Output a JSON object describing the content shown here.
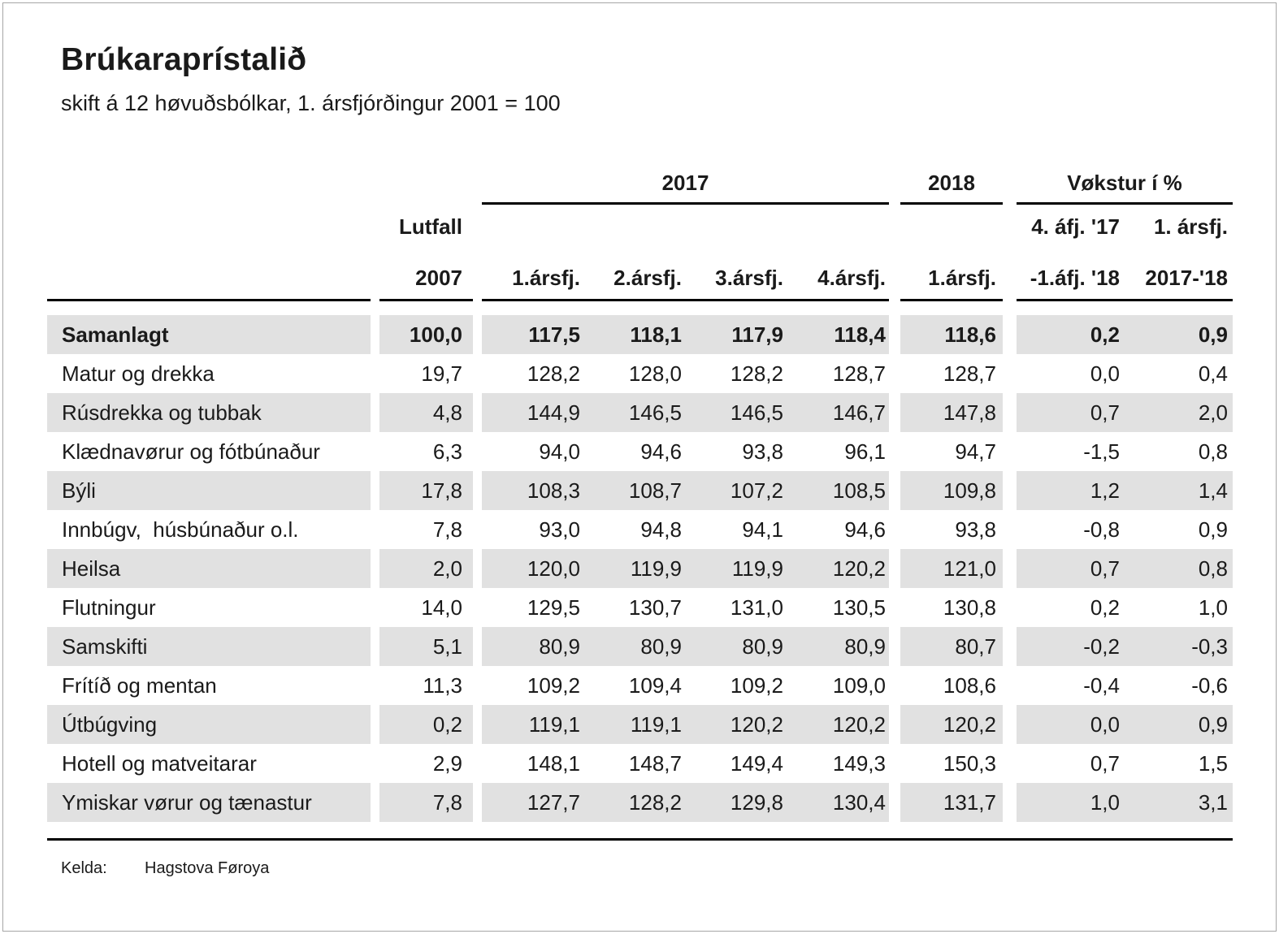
{
  "page": {
    "title": "Brúkaraprístalið",
    "subtitle": "skift á 12 høvuðsbólkar, 1. ársfjórðingur 2001 = 100",
    "source_label": "Kelda:",
    "source_value": "Hagstova Føroya"
  },
  "colors": {
    "row_shade": "#e1e1e1",
    "rule": "#000000",
    "text": "#1a1a1a",
    "frame_border": "#a6a6a6"
  },
  "table": {
    "group_headers": {
      "y2017": "2017",
      "y2018": "2018",
      "growth": "Vøkstur í %"
    },
    "col_headers": {
      "lutfall_line1": "Lutfall",
      "lutfall_line2": "2007",
      "q1_2017": "1.ársfj.",
      "q2_2017": "2.ársfj.",
      "q3_2017": "3.ársfj.",
      "q4_2017": "4.ársfj.",
      "q1_2018": "1.ársfj.",
      "growth1_line1": "4. áfj. '17",
      "growth1_line2": "-1.áfj. '18",
      "growth2_line1": "1. ársfj.",
      "growth2_line2": "2017-'18"
    },
    "rows": [
      {
        "label": "Samanlagt",
        "bold": true,
        "values": [
          "100,0",
          "117,5",
          "118,1",
          "117,9",
          "118,4",
          "118,6",
          "0,2",
          "0,9"
        ]
      },
      {
        "label": "Matur og drekka",
        "bold": false,
        "values": [
          "19,7",
          "128,2",
          "128,0",
          "128,2",
          "128,7",
          "128,7",
          "0,0",
          "0,4"
        ]
      },
      {
        "label": "Rúsdrekka og tubbak",
        "bold": false,
        "values": [
          "4,8",
          "144,9",
          "146,5",
          "146,5",
          "146,7",
          "147,8",
          "0,7",
          "2,0"
        ]
      },
      {
        "label": "Klædnavørur og fótbúnaður",
        "bold": false,
        "values": [
          "6,3",
          "94,0",
          "94,6",
          "93,8",
          "96,1",
          "94,7",
          "-1,5",
          "0,8"
        ]
      },
      {
        "label": "Býli",
        "bold": false,
        "values": [
          "17,8",
          "108,3",
          "108,7",
          "107,2",
          "108,5",
          "109,8",
          "1,2",
          "1,4"
        ]
      },
      {
        "label": "Innbúgv,  húsbúnaður o.l.",
        "bold": false,
        "values": [
          "7,8",
          "93,0",
          "94,8",
          "94,1",
          "94,6",
          "93,8",
          "-0,8",
          "0,9"
        ]
      },
      {
        "label": "Heilsa",
        "bold": false,
        "values": [
          "2,0",
          "120,0",
          "119,9",
          "119,9",
          "120,2",
          "121,0",
          "0,7",
          "0,8"
        ]
      },
      {
        "label": "Flutningur",
        "bold": false,
        "values": [
          "14,0",
          "129,5",
          "130,7",
          "131,0",
          "130,5",
          "130,8",
          "0,2",
          "1,0"
        ]
      },
      {
        "label": "Samskifti",
        "bold": false,
        "values": [
          "5,1",
          "80,9",
          "80,9",
          "80,9",
          "80,9",
          "80,7",
          "-0,2",
          "-0,3"
        ]
      },
      {
        "label": "Frítíð og mentan",
        "bold": false,
        "values": [
          "11,3",
          "109,2",
          "109,4",
          "109,2",
          "109,0",
          "108,6",
          "-0,4",
          "-0,6"
        ]
      },
      {
        "label": "Útbúgving",
        "bold": false,
        "values": [
          "0,2",
          "119,1",
          "119,1",
          "120,2",
          "120,2",
          "120,2",
          "0,0",
          "0,9"
        ]
      },
      {
        "label": "Hotell og matveitarar",
        "bold": false,
        "values": [
          "2,9",
          "148,1",
          "148,7",
          "149,4",
          "149,3",
          "150,3",
          "0,7",
          "1,5"
        ]
      },
      {
        "label": "Ymiskar vørur og tænastur",
        "bold": false,
        "values": [
          "7,8",
          "127,7",
          "128,2",
          "129,8",
          "130,4",
          "131,7",
          "1,0",
          "3,1"
        ]
      }
    ]
  },
  "chart_data": {
    "type": "table",
    "title": "Brúkaraprístalið",
    "subtitle": "skift á 12 høvuðsbólkar, 1. ársfjórðingur 2001 = 100",
    "source": "Kelda: Hagstova Føroya",
    "column_groups": [
      "Lutfall 2007",
      "2017",
      "2017",
      "2017",
      "2017",
      "2018",
      "Vøkstur í %",
      "Vøkstur í %"
    ],
    "columns": [
      "Lutfall 2007",
      "2017 1.ársfj.",
      "2017 2.ársfj.",
      "2017 3.ársfj.",
      "2017 4.ársfj.",
      "2018 1.ársfj.",
      "4. áfj. '17 -1.áfj. '18",
      "1. ársfj. 2017-'18"
    ],
    "rows": [
      {
        "category": "Samanlagt",
        "values": [
          100.0,
          117.5,
          118.1,
          117.9,
          118.4,
          118.6,
          0.2,
          0.9
        ]
      },
      {
        "category": "Matur og drekka",
        "values": [
          19.7,
          128.2,
          128.0,
          128.2,
          128.7,
          128.7,
          0.0,
          0.4
        ]
      },
      {
        "category": "Rúsdrekka og tubbak",
        "values": [
          4.8,
          144.9,
          146.5,
          146.5,
          146.7,
          147.8,
          0.7,
          2.0
        ]
      },
      {
        "category": "Klædnavørur og fótbúnaður",
        "values": [
          6.3,
          94.0,
          94.6,
          93.8,
          96.1,
          94.7,
          -1.5,
          0.8
        ]
      },
      {
        "category": "Býli",
        "values": [
          17.8,
          108.3,
          108.7,
          107.2,
          108.5,
          109.8,
          1.2,
          1.4
        ]
      },
      {
        "category": "Innbúgv, húsbúnaður o.l.",
        "values": [
          7.8,
          93.0,
          94.8,
          94.1,
          94.6,
          93.8,
          -0.8,
          0.9
        ]
      },
      {
        "category": "Heilsa",
        "values": [
          2.0,
          120.0,
          119.9,
          119.9,
          120.2,
          121.0,
          0.7,
          0.8
        ]
      },
      {
        "category": "Flutningur",
        "values": [
          14.0,
          129.5,
          130.7,
          131.0,
          130.5,
          130.8,
          0.2,
          1.0
        ]
      },
      {
        "category": "Samskifti",
        "values": [
          5.1,
          80.9,
          80.9,
          80.9,
          80.9,
          80.7,
          -0.2,
          -0.3
        ]
      },
      {
        "category": "Frítíð og mentan",
        "values": [
          11.3,
          109.2,
          109.4,
          109.2,
          109.0,
          108.6,
          -0.4,
          -0.6
        ]
      },
      {
        "category": "Útbúgving",
        "values": [
          0.2,
          119.1,
          119.1,
          120.2,
          120.2,
          120.2,
          0.0,
          0.9
        ]
      },
      {
        "category": "Hotell og matveitarar",
        "values": [
          2.9,
          148.1,
          148.7,
          149.4,
          149.3,
          150.3,
          0.7,
          1.5
        ]
      },
      {
        "category": "Ymiskar vørur og tænastur",
        "values": [
          7.8,
          127.7,
          128.2,
          129.8,
          130.4,
          131.7,
          1.0,
          3.1
        ]
      }
    ]
  }
}
